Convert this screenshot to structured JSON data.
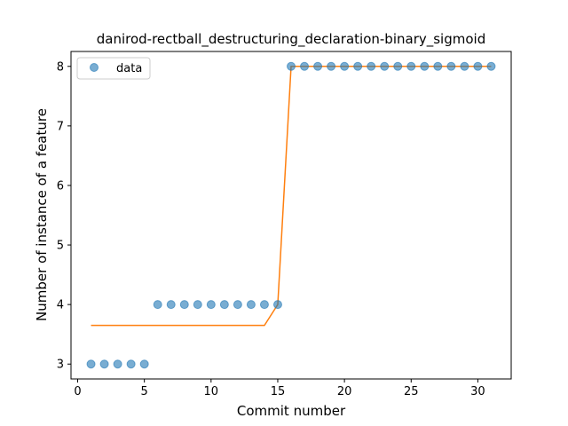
{
  "chart_data": {
    "type": "scatter",
    "title": "danirod-rectball_destructuring_declaration-binary_sigmoid",
    "xlabel": "Commit number",
    "ylabel": "Number of instance of a feature",
    "xlim": [
      -0.5,
      32.5
    ],
    "ylim": [
      2.75,
      8.25
    ],
    "xticks": [
      0,
      5,
      10,
      15,
      20,
      25,
      30
    ],
    "yticks": [
      3,
      4,
      5,
      6,
      7,
      8
    ],
    "grid": false,
    "legend_position": "top-left",
    "series": [
      {
        "name": "data",
        "kind": "scatter",
        "color": "#1f77b4",
        "x": [
          1,
          2,
          3,
          4,
          5,
          6,
          7,
          8,
          9,
          10,
          11,
          12,
          13,
          14,
          15,
          16,
          17,
          18,
          19,
          20,
          21,
          22,
          23,
          24,
          25,
          26,
          27,
          28,
          29,
          30,
          31
        ],
        "y": [
          3,
          3,
          3,
          3,
          3,
          4,
          4,
          4,
          4,
          4,
          4,
          4,
          4,
          4,
          4,
          8,
          8,
          8,
          8,
          8,
          8,
          8,
          8,
          8,
          8,
          8,
          8,
          8,
          8,
          8,
          8
        ]
      },
      {
        "kind": "line",
        "color": "#ff7f0e",
        "x": [
          1,
          2,
          3,
          4,
          5,
          6,
          7,
          8,
          9,
          10,
          11,
          12,
          13,
          14,
          15,
          16,
          17,
          18,
          19,
          20,
          21,
          22,
          23,
          24,
          25,
          26,
          27,
          28,
          29,
          30,
          31
        ],
        "y": [
          3.65,
          3.65,
          3.65,
          3.65,
          3.65,
          3.65,
          3.65,
          3.65,
          3.65,
          3.65,
          3.65,
          3.65,
          3.65,
          3.65,
          4.0,
          8.0,
          8.0,
          8.0,
          8.0,
          8.0,
          8.0,
          8.0,
          8.0,
          8.0,
          8.0,
          8.0,
          8.0,
          8.0,
          8.0,
          8.0,
          8.0
        ]
      }
    ]
  }
}
